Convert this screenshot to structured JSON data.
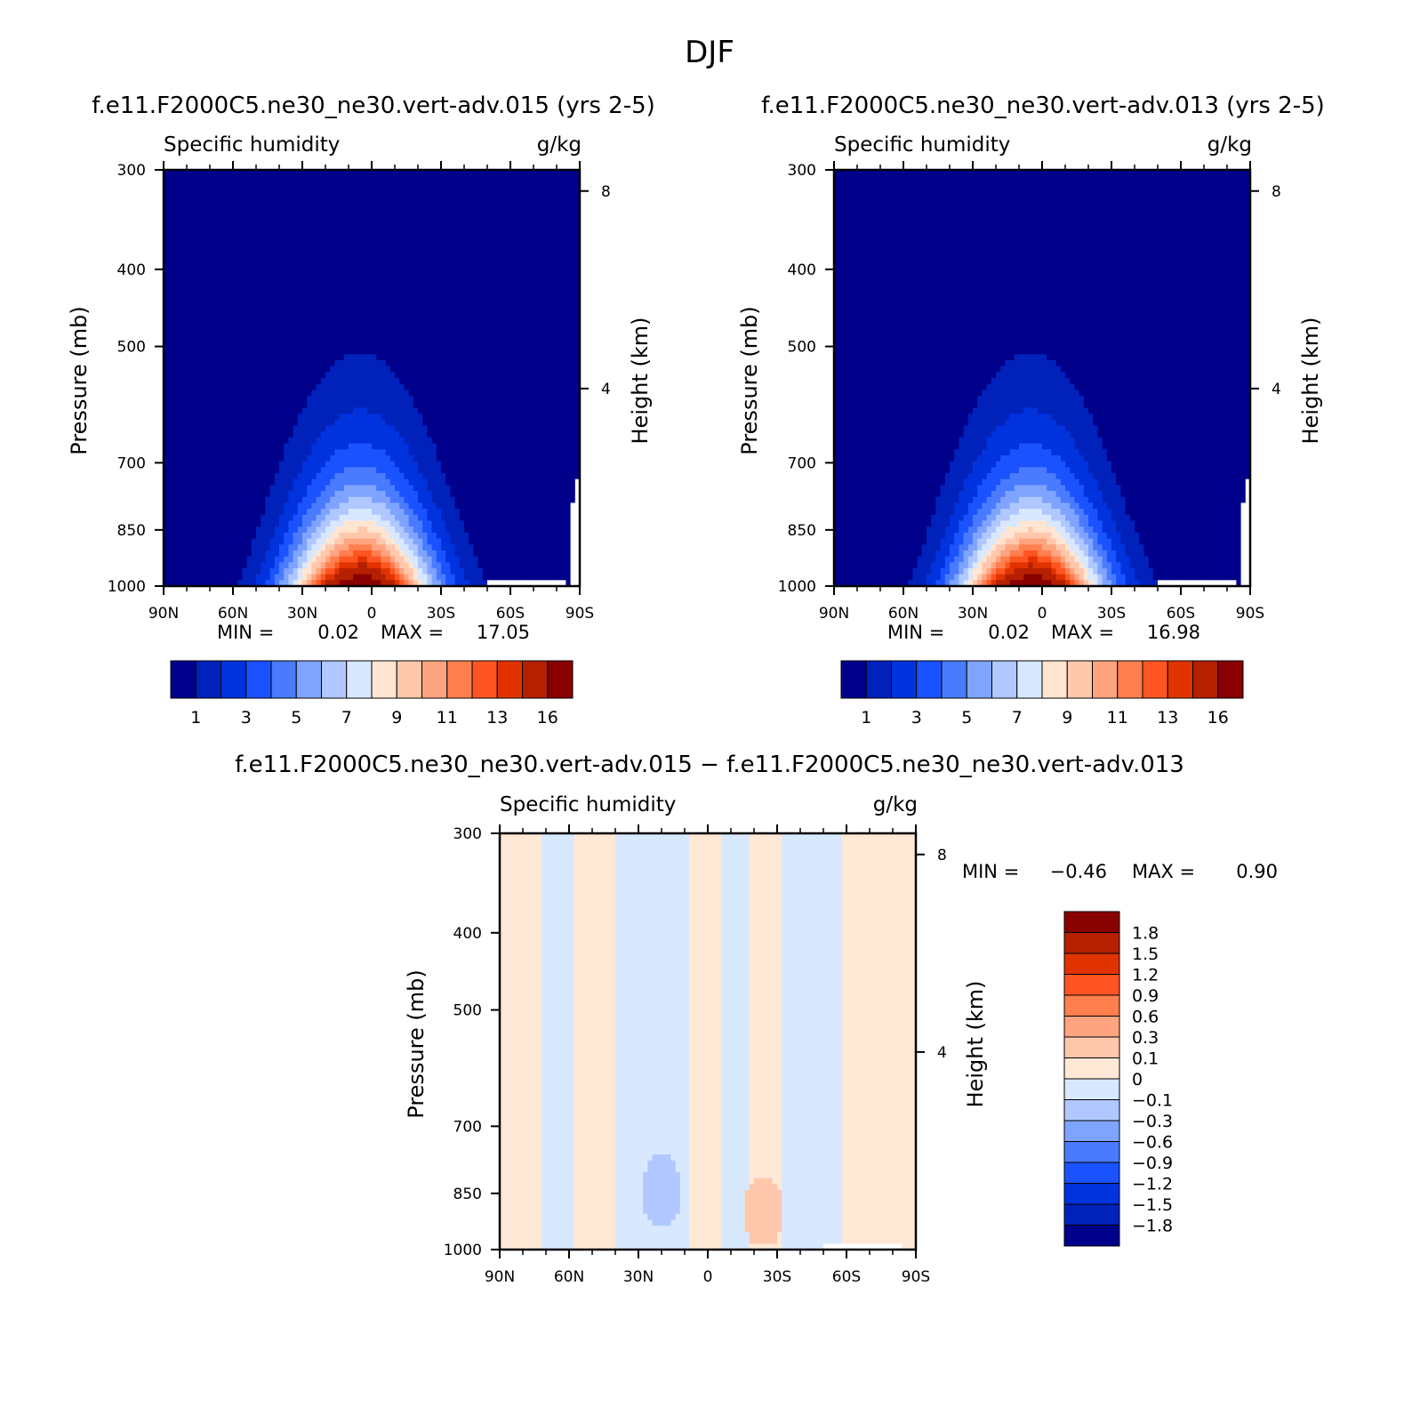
{
  "figure": {
    "title": "DJF"
  },
  "chart_data": [
    {
      "type": "heatmap",
      "run_title": "f.e11.F2000C5.ne30_ne30.vert-adv.015 (yrs 2-5)",
      "left_title": "Specific humidity",
      "units": "g/kg",
      "ylabel": "Pressure (mb)",
      "ylabel_right": "Height (km)",
      "x_ticks": [
        "90N",
        "60N",
        "30N",
        "0",
        "30S",
        "60S",
        "90S"
      ],
      "y_ticks": [
        "300",
        "400",
        "500",
        "700",
        "850",
        "1000"
      ],
      "y_right_ticks": [
        "8",
        "4"
      ],
      "ylim": [
        1000,
        300
      ],
      "min_label": "MIN =",
      "min_value": "0.02",
      "max_label": "MAX =",
      "max_value": "17.05",
      "colorbar_labels": [
        "1",
        "3",
        "5",
        "7",
        "9",
        "11",
        "13",
        "16"
      ],
      "field": {
        "peak": 17.05,
        "peak_lat": 5,
        "floor": 0.02
      }
    },
    {
      "type": "heatmap",
      "run_title": "f.e11.F2000C5.ne30_ne30.vert-adv.013 (yrs 2-5)",
      "left_title": "Specific humidity",
      "units": "g/kg",
      "ylabel": "Pressure (mb)",
      "ylabel_right": "Height (km)",
      "x_ticks": [
        "90N",
        "60N",
        "30N",
        "0",
        "30S",
        "60S",
        "90S"
      ],
      "y_ticks": [
        "300",
        "400",
        "500",
        "700",
        "850",
        "1000"
      ],
      "y_right_ticks": [
        "8",
        "4"
      ],
      "ylim": [
        1000,
        300
      ],
      "min_label": "MIN =",
      "min_value": "0.02",
      "max_label": "MAX =",
      "max_value": "16.98",
      "colorbar_labels": [
        "1",
        "3",
        "5",
        "7",
        "9",
        "11",
        "13",
        "16"
      ],
      "field": {
        "peak": 16.98,
        "peak_lat": 5,
        "floor": 0.02
      }
    },
    {
      "type": "heatmap",
      "run_title": "f.e11.F2000C5.ne30_ne30.vert-adv.015 − f.e11.F2000C5.ne30_ne30.vert-adv.013",
      "left_title": "Specific humidity",
      "units": "g/kg",
      "ylabel": "Pressure (mb)",
      "ylabel_right": "Height (km)",
      "x_ticks": [
        "90N",
        "60N",
        "30N",
        "0",
        "30S",
        "60S",
        "90S"
      ],
      "y_ticks": [
        "300",
        "400",
        "500",
        "700",
        "850",
        "1000"
      ],
      "y_right_ticks": [
        "8",
        "4"
      ],
      "ylim": [
        1000,
        300
      ],
      "min_label": "MIN =",
      "min_value": "−0.46",
      "max_label": "MAX =",
      "max_value": "0.90",
      "colorbar_labels": [
        "1.8",
        "1.5",
        "1.2",
        "0.9",
        "0.6",
        "0.3",
        "0.1",
        "0",
        "−0.1",
        "−0.3",
        "−0.6",
        "−0.9",
        "−1.2",
        "−1.5",
        "−1.8"
      ],
      "bands": [
        {
          "lat_range": [
            -90,
            -58
          ],
          "value": 0.05
        },
        {
          "lat_range": [
            -58,
            -32
          ],
          "value": -0.05
        },
        {
          "lat_range": [
            -32,
            -18
          ],
          "value": 0.05
        },
        {
          "lat_range": [
            -18,
            -5
          ],
          "value": -0.05
        },
        {
          "lat_range": [
            -5,
            8
          ],
          "value": 0.05
        },
        {
          "lat_range": [
            8,
            40
          ],
          "value": -0.05
        },
        {
          "lat_range": [
            40,
            58
          ],
          "value": 0.05
        },
        {
          "lat_range": [
            58,
            72
          ],
          "value": -0.05
        },
        {
          "lat_range": [
            72,
            90
          ],
          "value": 0.05
        }
      ],
      "blobs": [
        {
          "lat": -24,
          "pressure": 900,
          "value": 0.2
        },
        {
          "lat": 20,
          "pressure": 850,
          "value": -0.2
        }
      ]
    }
  ],
  "colors": {
    "full_field": [
      "#00008b",
      "#0022bb",
      "#0033dd",
      "#1a52ff",
      "#4a7bff",
      "#7fa4ff",
      "#b0c8ff",
      "#d8e8ff",
      "#ffe5d2",
      "#ffc7ab",
      "#ffa480",
      "#ff7f4f",
      "#ff5522",
      "#e03300",
      "#b52000",
      "#880000"
    ],
    "difference": [
      "#880000",
      "#b52000",
      "#e03300",
      "#ff5522",
      "#ff7f4f",
      "#ffa480",
      "#ffc7ab",
      "#ffe8d6",
      "#d8e8ff",
      "#b0c8ff",
      "#7fa4ff",
      "#4a7bff",
      "#1a52ff",
      "#0033dd",
      "#0022bb",
      "#00008b"
    ]
  }
}
